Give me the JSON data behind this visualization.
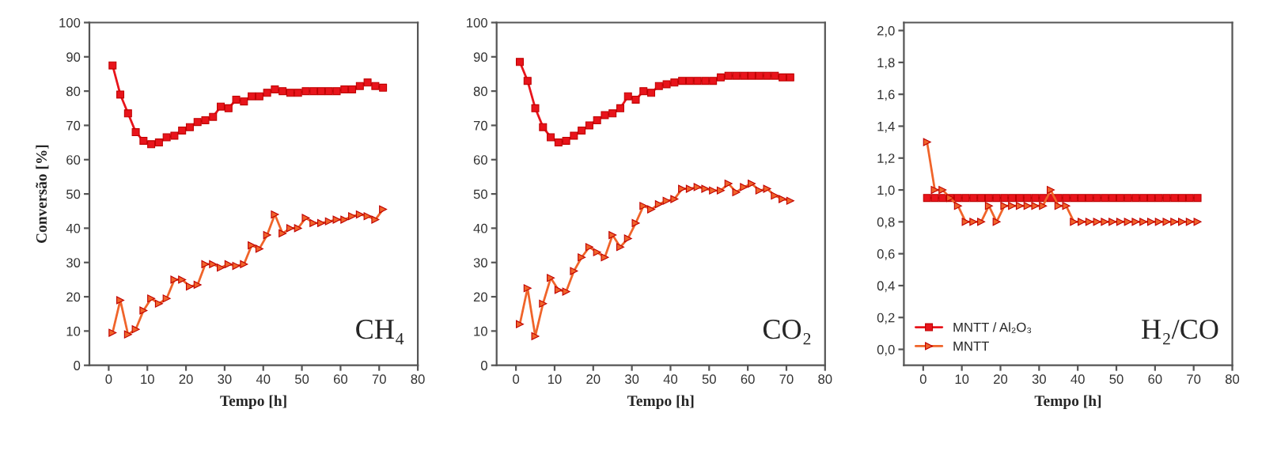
{
  "chart_data": [
    {
      "type": "line",
      "ylabel": "Conversão [%]",
      "xlabel": "Tempo [h]",
      "annotations": [
        "CH₄"
      ],
      "x": [
        1,
        3,
        5,
        7,
        9,
        11,
        13,
        15,
        17,
        19,
        21,
        23,
        25,
        27,
        29,
        31,
        33,
        35,
        37,
        39,
        41,
        43,
        45,
        47,
        49,
        51,
        53,
        55,
        57,
        59,
        61,
        63,
        65,
        67,
        69,
        71
      ],
      "series": [
        {
          "color": "#e8141b",
          "marker": "square",
          "values": [
            87.5,
            79,
            73.5,
            68,
            65.5,
            64.5,
            65,
            66.5,
            67,
            68.5,
            69.5,
            71,
            71.5,
            72.5,
            75.5,
            75,
            77.5,
            77,
            78.5,
            78.5,
            79.5,
            80.5,
            80,
            79.5,
            79.5,
            80,
            80,
            80,
            80,
            80,
            80.5,
            80.5,
            81.5,
            82.5,
            81.5,
            81
          ]
        },
        {
          "color": "#f0642a",
          "marker": "triangle",
          "values": [
            9.5,
            19,
            9,
            10.5,
            16,
            19.5,
            18,
            19.5,
            25,
            25,
            23,
            23.5,
            29.5,
            29.5,
            28.5,
            29.5,
            29,
            29.5,
            35,
            34,
            38,
            44,
            38.5,
            40,
            40,
            43,
            41.5,
            41.5,
            42,
            42.5,
            42.5,
            43.5,
            44,
            43.5,
            42.5,
            45.5
          ]
        }
      ],
      "xlim": [
        -5,
        80
      ],
      "xticks": [
        0,
        10,
        20,
        30,
        40,
        50,
        60,
        70,
        80
      ],
      "ylim": [
        0,
        100
      ],
      "yticks": [
        0,
        10,
        20,
        30,
        40,
        50,
        60,
        70,
        80,
        90,
        100
      ],
      "grid": false,
      "legend": false,
      "line_style": "solid"
    },
    {
      "type": "line",
      "xlabel": "Tempo [h]",
      "annotations": [
        "CO₂"
      ],
      "x": [
        1,
        3,
        5,
        7,
        9,
        11,
        13,
        15,
        17,
        19,
        21,
        23,
        25,
        27,
        29,
        31,
        33,
        35,
        37,
        39,
        41,
        43,
        45,
        47,
        49,
        51,
        53,
        55,
        57,
        59,
        61,
        63,
        65,
        67,
        69,
        71
      ],
      "series": [
        {
          "color": "#e8141b",
          "marker": "square",
          "values": [
            88.5,
            83,
            75,
            69.5,
            66.5,
            65,
            65.5,
            67,
            68.5,
            70,
            71.5,
            73,
            73.5,
            75,
            78.5,
            77.5,
            80,
            79.5,
            81.5,
            82,
            82.5,
            83,
            83,
            83,
            83,
            83,
            84,
            84.5,
            84.5,
            84.5,
            84.5,
            84.5,
            84.5,
            84.5,
            84,
            84
          ]
        },
        {
          "color": "#f0642a",
          "marker": "triangle",
          "values": [
            12,
            22.5,
            8.5,
            18,
            25.5,
            22,
            21.5,
            27.5,
            31.5,
            34.5,
            33,
            31.5,
            38,
            34.5,
            37,
            41.5,
            46.5,
            45.5,
            47,
            48,
            48.5,
            51.5,
            51.5,
            52,
            51.5,
            51,
            51,
            53,
            50.5,
            52,
            53,
            51,
            51.5,
            49.5,
            48.5,
            48
          ]
        }
      ],
      "xlim": [
        -5,
        80
      ],
      "xticks": [
        0,
        10,
        20,
        30,
        40,
        50,
        60,
        70,
        80
      ],
      "ylim": [
        0,
        100
      ],
      "yticks": [
        0,
        10,
        20,
        30,
        40,
        50,
        60,
        70,
        80,
        90,
        100
      ],
      "grid": false,
      "legend": false,
      "line_style": "solid"
    },
    {
      "type": "line",
      "xlabel": "Tempo [h]",
      "annotations": [
        "H₂/CO"
      ],
      "x": [
        1,
        3,
        5,
        7,
        9,
        11,
        13,
        15,
        17,
        19,
        21,
        23,
        25,
        27,
        29,
        31,
        33,
        35,
        37,
        39,
        41,
        43,
        45,
        47,
        49,
        51,
        53,
        55,
        57,
        59,
        61,
        63,
        65,
        67,
        69,
        71
      ],
      "series": [
        {
          "name": "MNTT / Al₂O₃",
          "color": "#e8141b",
          "marker": "square",
          "values": [
            0.95,
            0.95,
            0.95,
            0.95,
            0.95,
            0.95,
            0.95,
            0.95,
            0.95,
            0.95,
            0.95,
            0.95,
            0.95,
            0.95,
            0.95,
            0.95,
            0.95,
            0.95,
            0.95,
            0.95,
            0.95,
            0.95,
            0.95,
            0.95,
            0.95,
            0.95,
            0.95,
            0.95,
            0.95,
            0.95,
            0.95,
            0.95,
            0.95,
            0.95,
            0.95,
            0.95
          ]
        },
        {
          "name": "MNTT",
          "color": "#f0642a",
          "marker": "triangle",
          "values": [
            1.3,
            1.0,
            1.0,
            0.95,
            0.9,
            0.8,
            0.8,
            0.8,
            0.9,
            0.8,
            0.9,
            0.9,
            0.9,
            0.9,
            0.9,
            0.9,
            1.0,
            0.9,
            0.9,
            0.8,
            0.8,
            0.8,
            0.8,
            0.8,
            0.8,
            0.8,
            0.8,
            0.8,
            0.8,
            0.8,
            0.8,
            0.8,
            0.8,
            0.8,
            0.8,
            0.8
          ]
        }
      ],
      "xlim": [
        -5,
        80
      ],
      "xticks": [
        0,
        10,
        20,
        30,
        40,
        50,
        60,
        70,
        80
      ],
      "ylim": [
        -0.1,
        2.05
      ],
      "yticks": [
        {
          "value": 0,
          "label": "0,0"
        },
        {
          "value": 0.2,
          "label": "0,2"
        },
        {
          "value": 0.4,
          "label": "0,4"
        },
        {
          "value": 0.6,
          "label": "0,6"
        },
        {
          "value": 0.8,
          "label": "0,8"
        },
        {
          "value": 1.0,
          "label": "1,0"
        },
        {
          "value": 1.2,
          "label": "1,2"
        },
        {
          "value": 1.4,
          "label": "1,4"
        },
        {
          "value": 1.6,
          "label": "1,6"
        },
        {
          "value": 1.8,
          "label": "1,8"
        },
        {
          "value": 2.0,
          "label": "2,0"
        }
      ],
      "grid": false,
      "legend": "bottom left",
      "line_style": "solid"
    }
  ]
}
